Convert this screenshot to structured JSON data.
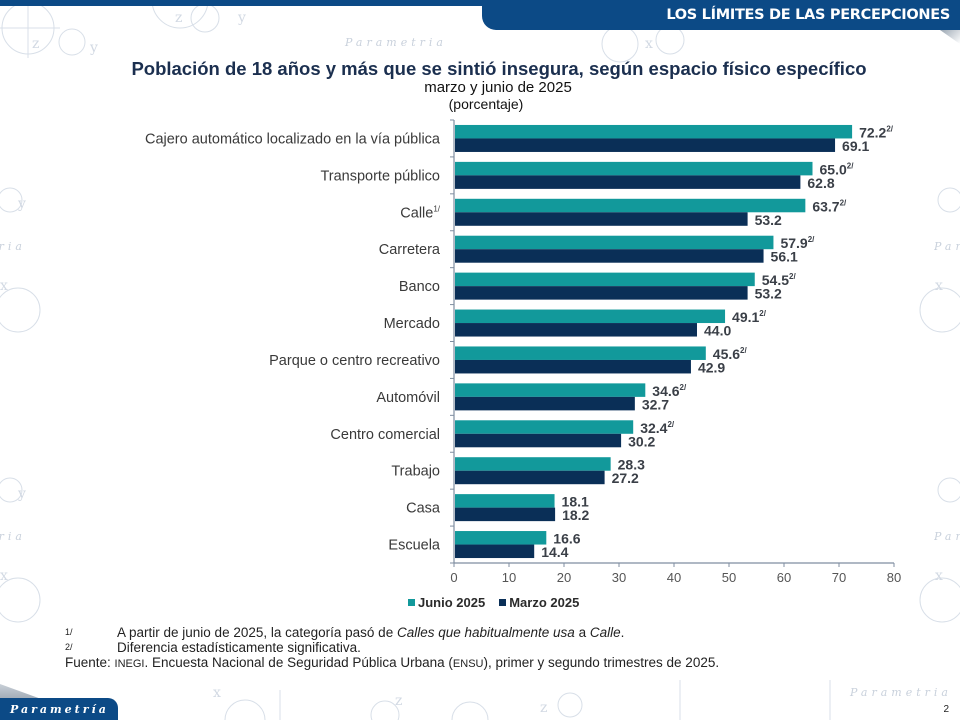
{
  "header": {
    "section_title": "LOS LÍMITES DE LAS PERCEPCIONES"
  },
  "footer": {
    "logo_text": "Parametría",
    "watermark_text": "Parametria",
    "page_number": "2"
  },
  "colors": {
    "brand_blue": "#0c4a86",
    "junio": "#12999b",
    "marzo": "#0a2f57"
  },
  "notes": {
    "n1_mark": "1/",
    "n1_text_a": "A partir de junio de 2025, la categoría pasó de ",
    "n1_text_italic": "Calles que habitualmente usa",
    "n1_text_b": " a ",
    "n1_text_italic2": "Calle",
    "n1_text_c": ".",
    "n2_mark": "2/",
    "n2_text": "Diferencia estadísticamente significativa.",
    "source_label": "Fuente: ",
    "source_org": "INEGI",
    "source_text_a": ". Encuesta Nacional de Seguridad Pública Urbana (",
    "source_abbr": "ENSU",
    "source_text_b": "), primer y segundo trimestres de 2025."
  },
  "chart_data": {
    "type": "bar",
    "orientation": "horizontal",
    "title": "Población de 18 años y más que se sintió insegura, según espacio físico específico",
    "subtitle": "marzo y junio de 2025",
    "unit_label": "(porcentaje)",
    "xlabel": "",
    "ylabel": "",
    "xlim": [
      0,
      80
    ],
    "xticks": [
      0,
      10,
      20,
      30,
      40,
      50,
      60,
      70,
      80
    ],
    "grid": false,
    "legend_position": "bottom",
    "categories": [
      "Cajero automático localizado en la vía pública",
      "Transporte público",
      "Calle",
      "Carretera",
      "Banco",
      "Mercado",
      "Parque o centro recreativo",
      "Automóvil",
      "Centro comercial",
      "Trabajo",
      "Casa",
      "Escuela"
    ],
    "category_marks": [
      "",
      "",
      "1/",
      "",
      "",
      "",
      "",
      "",
      "",
      "",
      "",
      ""
    ],
    "series": [
      {
        "name": "Junio 2025",
        "color": "#12999b",
        "values": [
          72.2,
          65.0,
          63.7,
          57.9,
          54.5,
          49.1,
          45.6,
          34.6,
          32.4,
          28.3,
          18.1,
          16.6
        ],
        "labels": [
          "72.2",
          "65.0",
          "63.7",
          "57.9",
          "54.5",
          "49.1",
          "45.6",
          "34.6",
          "32.4",
          "28.3",
          "18.1",
          "16.6"
        ],
        "marks": [
          "2/",
          "2/",
          "2/",
          "2/",
          "2/",
          "2/",
          "2/",
          "2/",
          "2/",
          "",
          "",
          ""
        ]
      },
      {
        "name": "Marzo 2025",
        "color": "#0a2f57",
        "values": [
          69.1,
          62.8,
          53.2,
          56.1,
          53.2,
          44.0,
          42.9,
          32.7,
          30.2,
          27.2,
          18.2,
          14.4
        ],
        "labels": [
          "69.1",
          "62.8",
          "53.2",
          "56.1",
          "53.2",
          "44.0",
          "42.9",
          "32.7",
          "30.2",
          "27.2",
          "18.2",
          "14.4"
        ],
        "marks": [
          "",
          "",
          "",
          "",
          "",
          "",
          "",
          "",
          "",
          "",
          "",
          ""
        ]
      }
    ]
  }
}
